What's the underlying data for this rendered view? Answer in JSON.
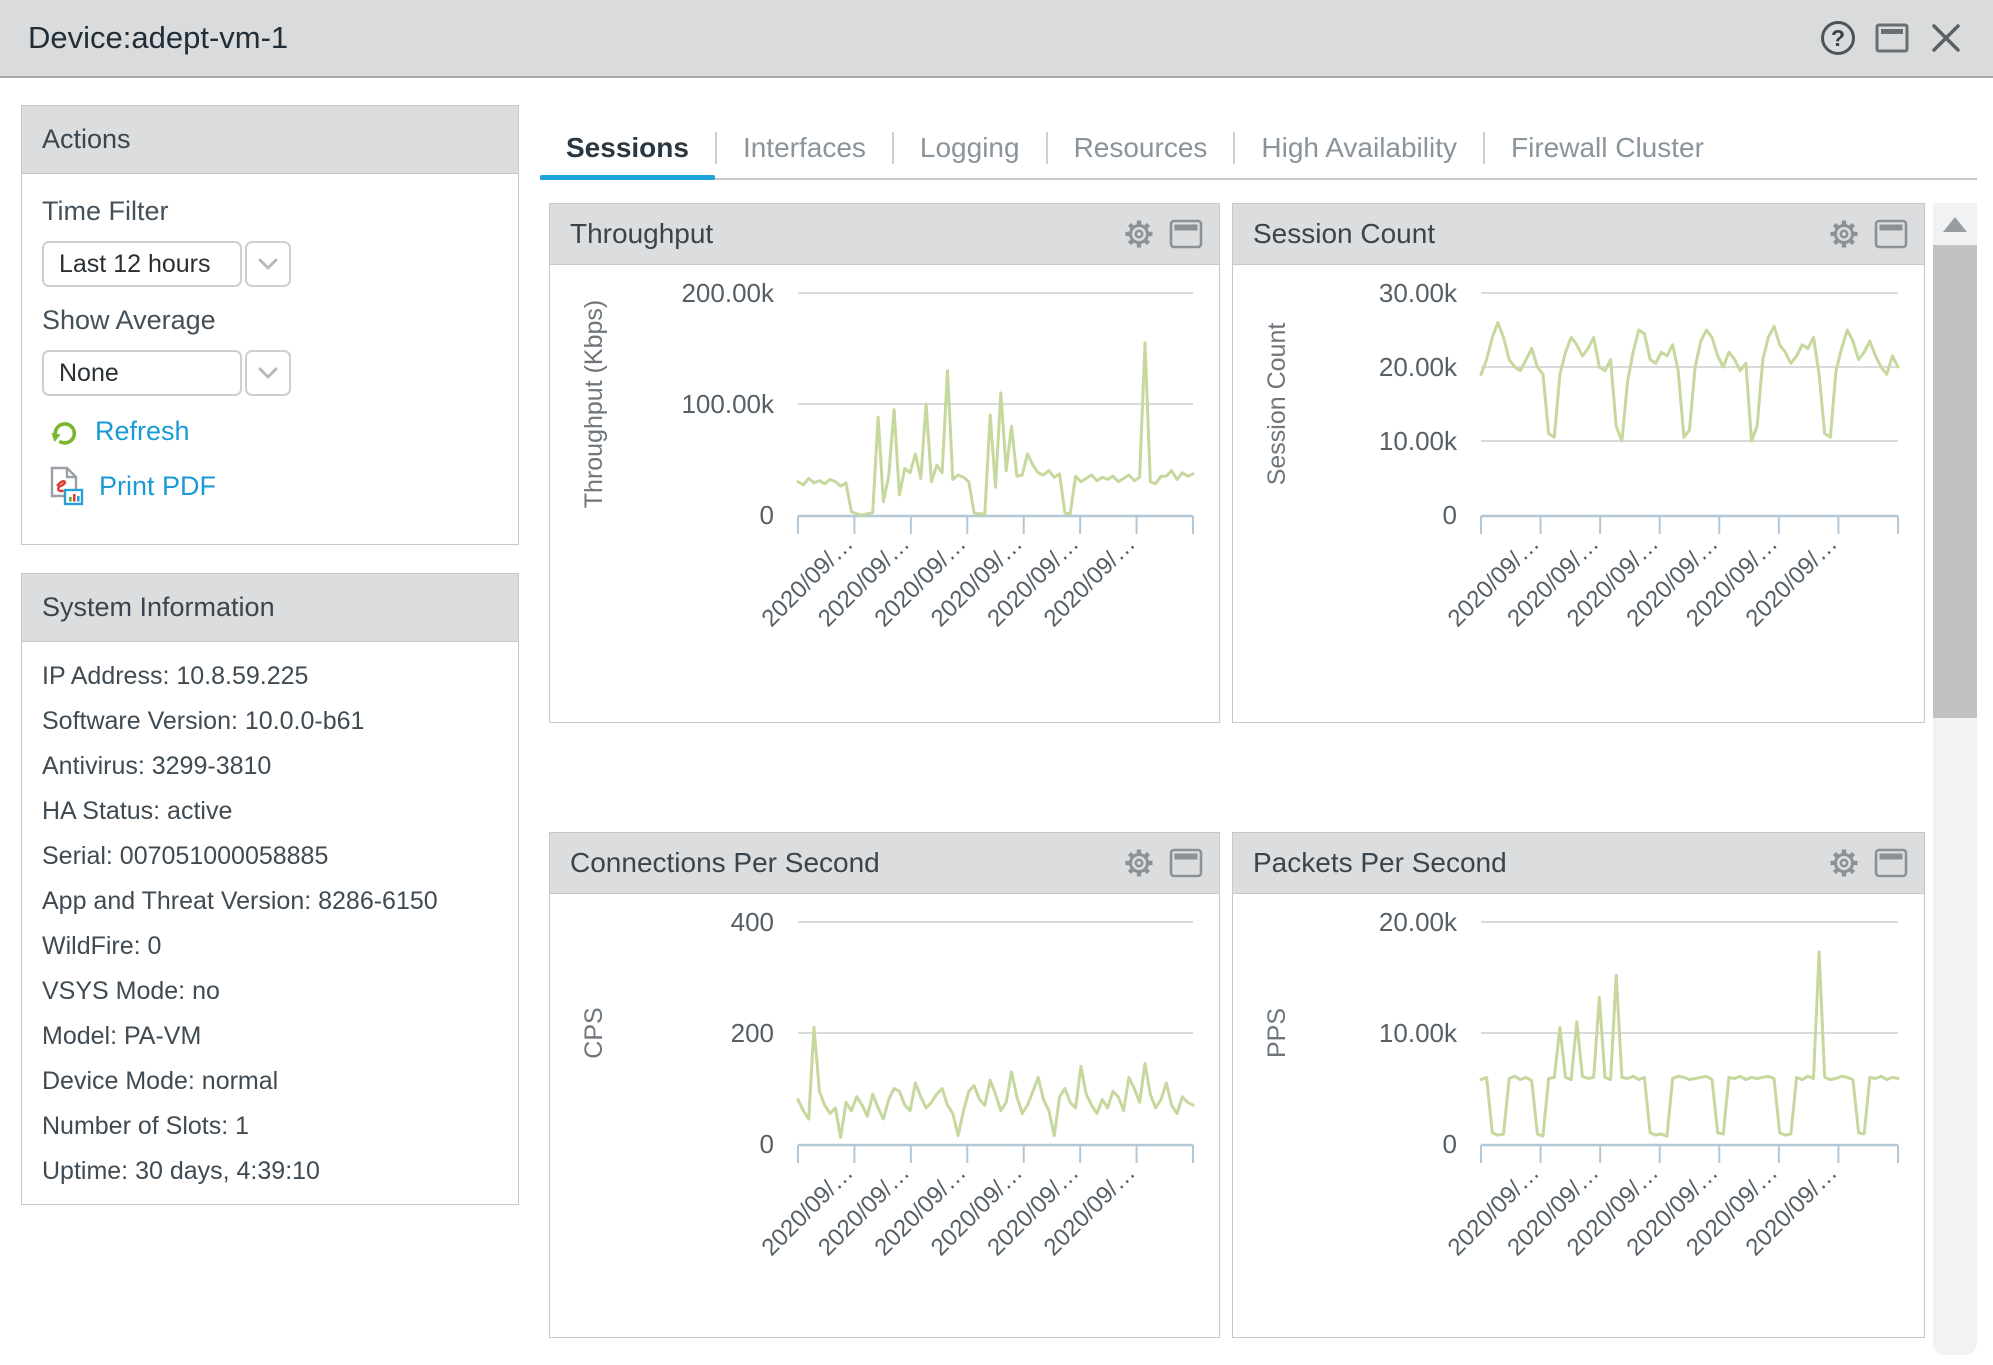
{
  "window": {
    "title": "Device:adept-vm-1"
  },
  "actions": {
    "title": "Actions",
    "time_filter_label": "Time Filter",
    "time_filter_value": "Last 12 hours",
    "show_average_label": "Show Average",
    "show_average_value": "None",
    "refresh_label": "Refresh",
    "print_pdf_label": "Print PDF"
  },
  "system_information": {
    "title": "System Information",
    "items": [
      "IP Address: 10.8.59.225",
      "Software Version: 10.0.0-b61",
      "Antivirus: 3299-3810",
      "HA Status: active",
      "Serial: 007051000058885",
      "App and Threat Version: 8286-6150",
      "WildFire: 0",
      "VSYS Mode: no",
      "Model: PA-VM",
      "Device Mode: normal",
      "Number of Slots: 1",
      "Uptime: 30 days, 4:39:10"
    ]
  },
  "tabs": [
    {
      "label": "Sessions",
      "active": true
    },
    {
      "label": "Interfaces",
      "active": false
    },
    {
      "label": "Logging",
      "active": false
    },
    {
      "label": "Resources",
      "active": false
    },
    {
      "label": "High Availability",
      "active": false
    },
    {
      "label": "Firewall Cluster",
      "active": false
    }
  ],
  "colors": {
    "accent_blue": "#1ba4da",
    "link_blue": "#1a9ad6",
    "line_green": "#c6d89d",
    "axis_blue": "#b4c7d6",
    "grid_gray": "#d9dadb",
    "header_gray": "#dcddde",
    "refresh_green": "#7ab62f"
  },
  "chart_data": [
    {
      "type": "line",
      "title": "Throughput",
      "ylabel": "Throughput (Kbps)",
      "line_color": "#c6d89d",
      "ylim": [
        0,
        200000
      ],
      "yticks": [
        {
          "v": 0,
          "label": "0"
        },
        {
          "v": 100000,
          "label": "100.00k"
        },
        {
          "v": 200000,
          "label": "200.00k"
        }
      ],
      "xlabels": [
        "2020/09/…",
        "2020/09/…",
        "2020/09/…",
        "2020/09/…",
        "2020/09/…",
        "2020/09/…"
      ],
      "values": [
        30000,
        27000,
        33000,
        29000,
        31000,
        28000,
        32000,
        30000,
        26000,
        29000,
        3000,
        1000,
        0,
        1000,
        2000,
        88000,
        12000,
        35000,
        95000,
        18000,
        42000,
        38000,
        55000,
        33000,
        100000,
        30000,
        45000,
        38000,
        130000,
        32000,
        36000,
        34000,
        30000,
        2000,
        1000,
        1000,
        90000,
        25000,
        110000,
        40000,
        80000,
        35000,
        36000,
        55000,
        45000,
        38000,
        36000,
        40000,
        34000,
        37000,
        2000,
        1000,
        35000,
        30000,
        33000,
        36000,
        31000,
        34000,
        32000,
        35000,
        30000,
        33000,
        36000,
        31000,
        34000,
        155000,
        30000,
        28000,
        35000,
        35000,
        40000,
        32000,
        38000,
        35000,
        37000
      ]
    },
    {
      "type": "line",
      "title": "Session Count",
      "ylabel": "Session Count",
      "line_color": "#c6d89d",
      "ylim": [
        0,
        30000
      ],
      "yticks": [
        {
          "v": 0,
          "label": "0"
        },
        {
          "v": 10000,
          "label": "10.00k"
        },
        {
          "v": 20000,
          "label": "20.00k"
        },
        {
          "v": 30000,
          "label": "30.00k"
        }
      ],
      "xlabels": [
        "2020/09/…",
        "2020/09/…",
        "2020/09/…",
        "2020/09/…",
        "2020/09/…",
        "2020/09/…"
      ],
      "values": [
        19000,
        21000,
        24000,
        26000,
        24000,
        21000,
        20000,
        19500,
        21000,
        22500,
        20000,
        19000,
        11000,
        10500,
        19000,
        22000,
        24000,
        23000,
        21500,
        22500,
        24000,
        20000,
        19500,
        21000,
        12000,
        10000,
        18000,
        22000,
        25000,
        24500,
        21000,
        20500,
        22000,
        21500,
        23000,
        19500,
        10500,
        11500,
        20000,
        23500,
        25000,
        24000,
        21500,
        20000,
        22000,
        21000,
        19500,
        20500,
        10000,
        12000,
        21000,
        24000,
        25500,
        23000,
        22000,
        20500,
        21500,
        23000,
        22500,
        24000,
        19000,
        11000,
        10500,
        19500,
        22500,
        25000,
        23500,
        21000,
        22000,
        23500,
        21500,
        20000,
        19000,
        21500,
        20000
      ]
    },
    {
      "type": "line",
      "title": "Connections Per Second",
      "ylabel": "CPS",
      "line_color": "#c6d89d",
      "ylim": [
        0,
        400
      ],
      "yticks": [
        {
          "v": 0,
          "label": "0"
        },
        {
          "v": 200,
          "label": "200"
        },
        {
          "v": 400,
          "label": "400"
        }
      ],
      "xlabels": [
        "2020/09/…",
        "2020/09/…",
        "2020/09/…",
        "2020/09/…",
        "2020/09/…",
        "2020/09/…"
      ],
      "values": [
        80,
        60,
        45,
        210,
        95,
        70,
        55,
        65,
        12,
        75,
        60,
        85,
        70,
        50,
        90,
        65,
        45,
        80,
        100,
        95,
        70,
        60,
        110,
        85,
        65,
        75,
        90,
        100,
        70,
        55,
        15,
        60,
        95,
        105,
        80,
        70,
        115,
        90,
        60,
        75,
        130,
        85,
        55,
        70,
        95,
        120,
        80,
        60,
        15,
        85,
        100,
        75,
        65,
        140,
        90,
        70,
        55,
        80,
        65,
        95,
        85,
        60,
        120,
        100,
        75,
        145,
        90,
        65,
        80,
        110,
        70,
        55,
        85,
        75,
        70
      ]
    },
    {
      "type": "line",
      "title": "Packets Per Second",
      "ylabel": "PPS",
      "line_color": "#c6d89d",
      "ylim": [
        0,
        20000
      ],
      "yticks": [
        {
          "v": 0,
          "label": "0"
        },
        {
          "v": 10000,
          "label": "10.00k"
        },
        {
          "v": 20000,
          "label": "20.00k"
        }
      ],
      "xlabels": [
        "2020/09/…",
        "2020/09/…",
        "2020/09/…",
        "2020/09/…",
        "2020/09/…",
        "2020/09/…"
      ],
      "values": [
        5800,
        6000,
        1000,
        800,
        900,
        5900,
        6100,
        5800,
        6000,
        5700,
        900,
        700,
        5900,
        6000,
        10500,
        6000,
        5800,
        11000,
        6100,
        5900,
        6000,
        13200,
        6000,
        5800,
        15200,
        6000,
        5900,
        6100,
        5800,
        6000,
        1000,
        800,
        900,
        700,
        5900,
        6100,
        6000,
        5800,
        5900,
        6000,
        6100,
        5800,
        1000,
        900,
        6000,
        5900,
        6100,
        5800,
        6000,
        5900,
        6000,
        6100,
        5900,
        1000,
        800,
        900,
        6000,
        5800,
        6100,
        5900,
        17300,
        6000,
        5800,
        5900,
        6100,
        6000,
        5800,
        1000,
        900,
        6000,
        5900,
        6100,
        5800,
        6000,
        5900
      ]
    }
  ]
}
